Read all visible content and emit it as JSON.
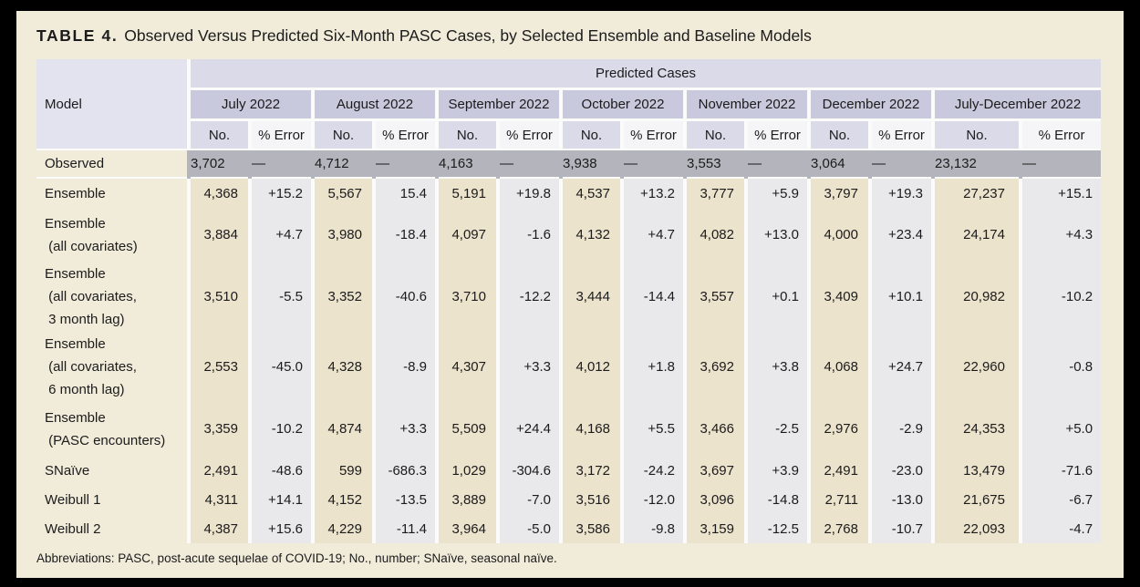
{
  "title": {
    "label": "TABLE 4.",
    "text": "Observed Versus Predicted Six-Month PASC Cases, by Selected Ensemble and Baseline Models"
  },
  "table": {
    "corner_header": "Model",
    "group_header": "Predicted Cases",
    "months": [
      "July 2022",
      "August 2022",
      "September 2022",
      "October 2022",
      "November 2022",
      "December 2022",
      "July-December 2022"
    ],
    "subheaders": {
      "no": "No.",
      "error": "% Error"
    },
    "observed": {
      "label": "Observed",
      "values": [
        "3,702",
        "—",
        "4,712",
        "—",
        "4,163",
        "—",
        "3,938",
        "—",
        "3,553",
        "—",
        "3,064",
        "—",
        "23,132",
        "—"
      ]
    },
    "rows": [
      {
        "label_lines": [
          "Ensemble"
        ],
        "values": [
          "4,368",
          "+15.2",
          "5,567",
          "15.4",
          "5,191",
          "+19.8",
          "4,537",
          "+13.2",
          "3,777",
          "+5.9",
          "3,797",
          "+19.3",
          "27,237",
          "+15.1"
        ]
      },
      {
        "label_lines": [
          "Ensemble",
          " (all covariates)"
        ],
        "values": [
          "3,884",
          "+4.7",
          "3,980",
          "-18.4",
          "4,097",
          "-1.6",
          "4,132",
          "+4.7",
          "4,082",
          "+13.0",
          "4,000",
          "+23.4",
          "24,174",
          "+4.3"
        ]
      },
      {
        "label_lines": [
          "Ensemble",
          " (all covariates,",
          " 3 month lag)"
        ],
        "values": [
          "3,510",
          "-5.5",
          "3,352",
          "-40.6",
          "3,710",
          "-12.2",
          "3,444",
          "-14.4",
          "3,557",
          "+0.1",
          "3,409",
          "+10.1",
          "20,982",
          "-10.2"
        ]
      },
      {
        "label_lines": [
          "Ensemble",
          " (all covariates,",
          " 6 month lag)"
        ],
        "values": [
          "2,553",
          "-45.0",
          "4,328",
          "-8.9",
          "4,307",
          "+3.3",
          "4,012",
          "+1.8",
          "3,692",
          "+3.8",
          "4,068",
          "+24.7",
          "22,960",
          "-0.8"
        ]
      },
      {
        "label_lines": [
          "Ensemble",
          " (PASC encounters)"
        ],
        "values": [
          "3,359",
          "-10.2",
          "4,874",
          "+3.3",
          "5,509",
          "+24.4",
          "4,168",
          "+5.5",
          "3,466",
          "-2.5",
          "2,976",
          "-2.9",
          "24,353",
          "+5.0"
        ]
      },
      {
        "label_lines": [
          "SNaïve"
        ],
        "values": [
          "2,491",
          "-48.6",
          "599",
          "-686.3",
          "1,029",
          "-304.6",
          "3,172",
          "-24.2",
          "3,697",
          "+3.9",
          "2,491",
          "-23.0",
          "13,479",
          "-71.6"
        ]
      },
      {
        "label_lines": [
          "Weibull 1"
        ],
        "values": [
          "4,311",
          "+14.1",
          "4,152",
          "-13.5",
          "3,889",
          "-7.0",
          "3,516",
          "-12.0",
          "3,096",
          "-14.8",
          "2,711",
          "-13.0",
          "21,675",
          "-6.7"
        ]
      },
      {
        "label_lines": [
          "Weibull 2"
        ],
        "values": [
          "4,387",
          "+15.6",
          "4,229",
          "-11.4",
          "3,964",
          "-5.0",
          "3,586",
          "-9.8",
          "3,159",
          "-12.5",
          "2,768",
          "-10.7",
          "22,093",
          "-4.7"
        ]
      }
    ],
    "footnote": "Abbreviations: PASC, post-acute sequelae of COVID-19; No., number; SNaïve, seasonal naïve."
  },
  "colors": {
    "page_background": "#f1ebda",
    "frame": "#000000",
    "header_model": "#e3e3f0",
    "header_group": "#dadae9",
    "header_month": "#c9c9de",
    "header_no": "#dadae9",
    "header_error": "#f5f5f7",
    "observed_row": "#b4b4bd",
    "col_no": "#ece3cd",
    "col_error": "#e9e9ec",
    "text": "#1b1b1b"
  }
}
